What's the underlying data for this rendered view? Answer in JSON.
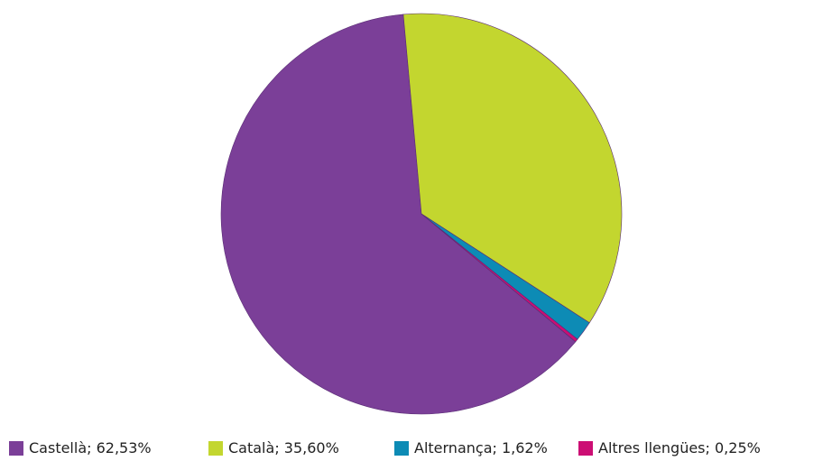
{
  "chart_data": {
    "type": "pie",
    "categories": [
      "Castellà",
      "Català",
      "Alternança",
      "Altres llengües"
    ],
    "values": [
      62.53,
      35.6,
      1.62,
      0.25
    ],
    "value_labels": [
      "62,53%",
      "35,60%",
      "1,62%",
      "0,25%"
    ],
    "legend_separator": "; ",
    "colors": [
      "#7b3f98",
      "#c3d62f",
      "#0d8bb5",
      "#cc0e74"
    ],
    "legend": "bottom"
  }
}
